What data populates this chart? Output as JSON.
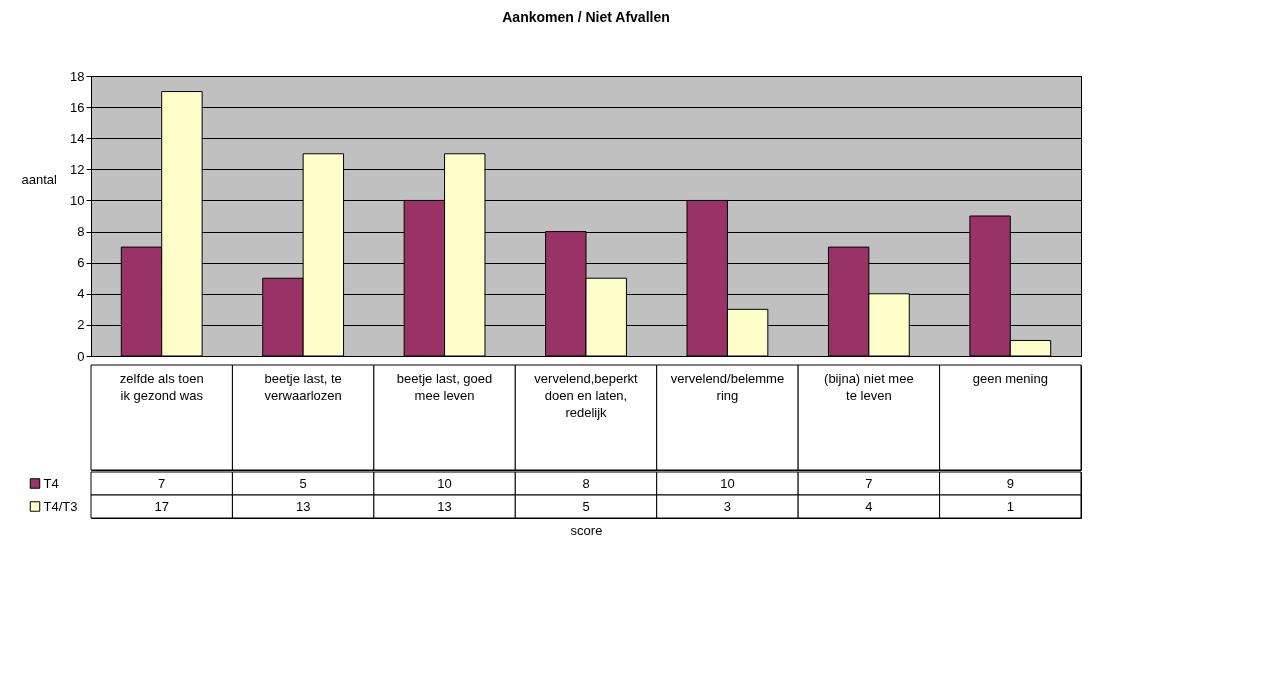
{
  "chart_data": {
    "type": "bar",
    "title": "Aankomen / Niet Afvallen",
    "annotations": [
      "score"
    ],
    "ylabel": "aantal",
    "categories": [
      "zelfde als toen ik gezond was",
      "beetje last, te verwaarlozen",
      "beetje last, goed mee leven",
      "vervelend,beperkt doen en laten, redelijk",
      "vervelend/belemmering",
      "(bijna) niet mee te leven",
      "geen mening"
    ],
    "series": [
      {
        "name": "T4",
        "color": "#993366",
        "values": [
          7,
          5,
          10,
          8,
          10,
          7,
          9
        ]
      },
      {
        "name": "T4/T3",
        "color": "#ffffcc",
        "values": [
          17,
          13,
          13,
          5,
          3,
          4,
          1
        ]
      }
    ],
    "ylim": [
      0,
      18
    ],
    "yticks": [
      0,
      2,
      4,
      6,
      8,
      10,
      12,
      14,
      16,
      18
    ],
    "grid": "y",
    "legend": "bottom left",
    "data_labels": true
  }
}
